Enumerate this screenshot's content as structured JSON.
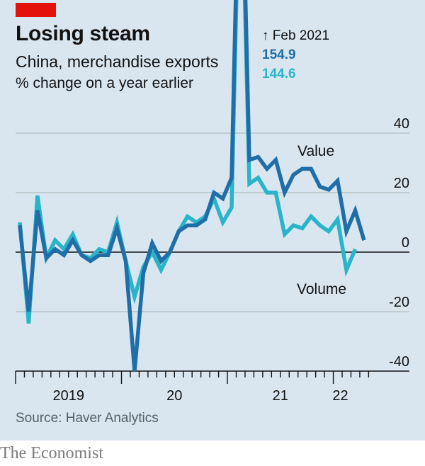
{
  "header": {
    "title": "Losing steam",
    "subtitle": "China, merchandise exports",
    "unit": "% change on a year earlier"
  },
  "annotation": {
    "date": "↑ Feb 2021",
    "value_peak": "154.9",
    "volume_peak": "144.6"
  },
  "footer": {
    "source": "Source: Haver Analytics",
    "brand": "The Economist"
  },
  "colors": {
    "value": "#1f6ea8",
    "volume": "#2ab4c9",
    "brand_red": "#e3120b",
    "background": "#d9e6ef"
  },
  "chart_data": {
    "type": "line",
    "title": "Losing steam",
    "subtitle": "China, merchandise exports",
    "ylabel": "% change on a year earlier",
    "xlabel": "",
    "ylim": [
      -40,
      40
    ],
    "yticks": [
      40,
      20,
      0,
      -20,
      -40
    ],
    "ytick_labels": [
      "40",
      "20",
      "0",
      "-20",
      "-40"
    ],
    "xtick_labels": [
      "2019",
      "20",
      "21",
      "22"
    ],
    "grid": true,
    "legend": "inline-labels",
    "x_start": "2019-01",
    "series": [
      {
        "name": "Value",
        "values": [
          9,
          -20,
          14,
          -2,
          1,
          -1,
          4,
          -1,
          -3,
          -1,
          -1,
          8,
          -3,
          -40,
          -7,
          3,
          -3,
          0,
          7,
          9,
          9,
          11,
          20,
          18,
          25,
          154.9,
          31,
          32,
          28,
          31,
          20,
          26,
          28,
          28,
          22,
          21,
          24,
          7,
          14,
          4
        ]
      },
      {
        "name": "Volume",
        "values": [
          10,
          -24,
          19,
          -2,
          4,
          1,
          6,
          -1,
          -2,
          1,
          0,
          10,
          -3,
          -15,
          -5,
          0,
          -6,
          0,
          7,
          12,
          10,
          12,
          18,
          10,
          15,
          144.6,
          23,
          25,
          20,
          20,
          6,
          9,
          8,
          12,
          9,
          7,
          11,
          -6,
          1
        ]
      }
    ],
    "annotations": [
      {
        "text": "↑ Feb 2021",
        "series": "both"
      },
      {
        "text": "154.9",
        "series": "Value"
      },
      {
        "text": "144.6",
        "series": "Volume"
      }
    ]
  }
}
